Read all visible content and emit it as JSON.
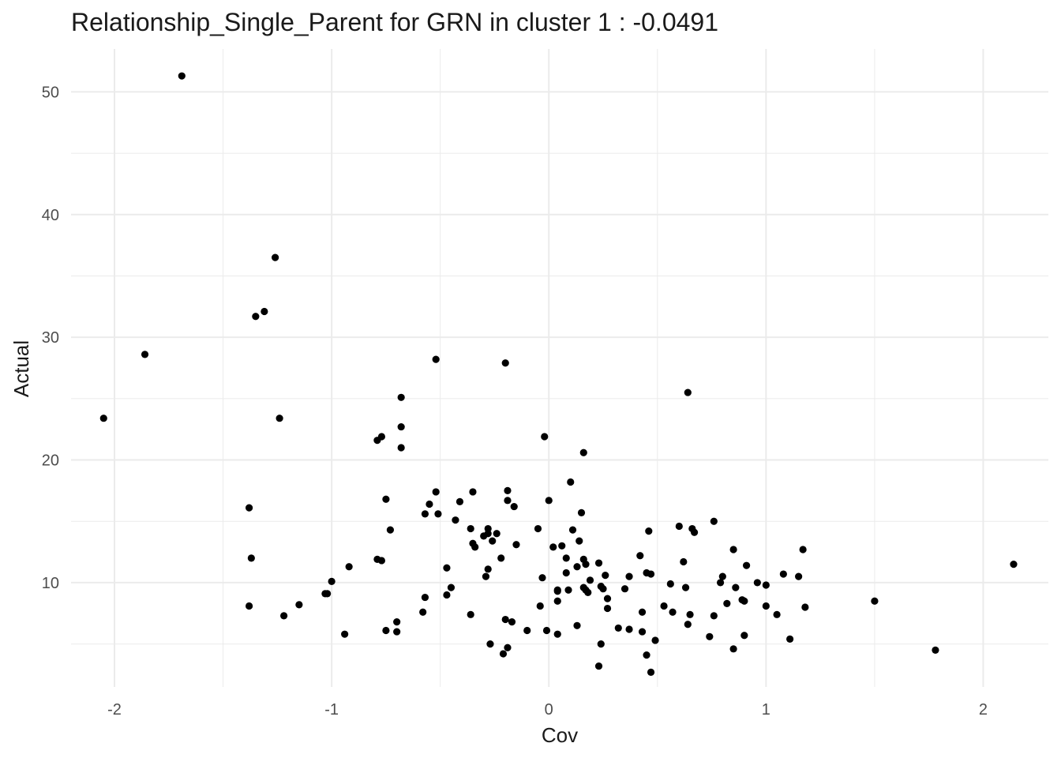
{
  "chart_data": {
    "type": "scatter",
    "title": "Relationship_Single_Parent for GRN in cluster 1 : -0.0491",
    "xlabel": "Cov",
    "ylabel": "Actual",
    "xlim": [
      -2.2,
      2.3
    ],
    "ylim": [
      1.5,
      53.5
    ],
    "x_ticks": [
      -2,
      -1,
      0,
      1,
      2
    ],
    "x_tick_labels": [
      "-2",
      "-1",
      "0",
      "1",
      "2"
    ],
    "x_minor_ticks": [
      -1.5,
      -0.5,
      0.5,
      1.5
    ],
    "y_ticks": [
      10,
      20,
      30,
      40,
      50
    ],
    "y_tick_labels": [
      "10",
      "20",
      "30",
      "40",
      "50"
    ],
    "y_minor_ticks": [
      5,
      15,
      25,
      35,
      45
    ],
    "grid": true,
    "point_color": "#000000",
    "grid_color": "#ebebeb",
    "points": [
      [
        -2.05,
        23.4
      ],
      [
        -1.86,
        28.6
      ],
      [
        -1.69,
        51.3
      ],
      [
        -1.26,
        36.5
      ],
      [
        -1.31,
        32.1
      ],
      [
        -1.35,
        31.7
      ],
      [
        -1.24,
        23.4
      ],
      [
        -1.38,
        16.1
      ],
      [
        -1.37,
        12.0
      ],
      [
        -1.38,
        8.1
      ],
      [
        -1.22,
        7.3
      ],
      [
        -1.15,
        8.2
      ],
      [
        -1.03,
        9.1
      ],
      [
        -1.02,
        9.1
      ],
      [
        -1.0,
        10.1
      ],
      [
        -0.94,
        5.8
      ],
      [
        -0.92,
        11.3
      ],
      [
        -0.79,
        21.6
      ],
      [
        -0.77,
        21.9
      ],
      [
        -0.79,
        11.9
      ],
      [
        -0.77,
        11.8
      ],
      [
        -0.75,
        16.8
      ],
      [
        -0.73,
        14.3
      ],
      [
        -0.75,
        6.1
      ],
      [
        -0.7,
        6.8
      ],
      [
        -0.7,
        6.0
      ],
      [
        -0.68,
        25.1
      ],
      [
        -0.68,
        22.7
      ],
      [
        -0.68,
        21.0
      ],
      [
        -0.52,
        28.2
      ],
      [
        -0.52,
        17.4
      ],
      [
        -0.55,
        16.4
      ],
      [
        -0.57,
        15.6
      ],
      [
        -0.51,
        15.6
      ],
      [
        -0.57,
        8.8
      ],
      [
        -0.58,
        7.6
      ],
      [
        -0.47,
        11.2
      ],
      [
        -0.45,
        9.6
      ],
      [
        -0.47,
        9.0
      ],
      [
        -0.43,
        15.1
      ],
      [
        -0.41,
        16.6
      ],
      [
        -0.35,
        17.4
      ],
      [
        -0.36,
        14.4
      ],
      [
        -0.35,
        13.2
      ],
      [
        -0.34,
        12.9
      ],
      [
        -0.36,
        7.4
      ],
      [
        -0.28,
        14.4
      ],
      [
        -0.28,
        14.0
      ],
      [
        -0.3,
        13.8
      ],
      [
        -0.24,
        14.0
      ],
      [
        -0.26,
        13.4
      ],
      [
        -0.22,
        12.0
      ],
      [
        -0.28,
        11.1
      ],
      [
        -0.29,
        10.5
      ],
      [
        -0.27,
        5.0
      ],
      [
        -0.21,
        4.2
      ],
      [
        -0.2,
        27.9
      ],
      [
        -0.19,
        17.5
      ],
      [
        -0.19,
        16.7
      ],
      [
        -0.16,
        16.2
      ],
      [
        -0.15,
        13.1
      ],
      [
        -0.2,
        7.0
      ],
      [
        -0.17,
        6.8
      ],
      [
        -0.19,
        4.7
      ],
      [
        -0.1,
        6.1
      ],
      [
        -0.05,
        14.4
      ],
      [
        -0.03,
        10.4
      ],
      [
        -0.04,
        8.1
      ],
      [
        -0.01,
        6.1
      ],
      [
        -0.02,
        21.9
      ],
      [
        0.0,
        16.7
      ],
      [
        0.02,
        12.9
      ],
      [
        0.04,
        9.4
      ],
      [
        0.04,
        9.3
      ],
      [
        0.04,
        8.5
      ],
      [
        0.04,
        5.8
      ],
      [
        0.06,
        13.0
      ],
      [
        0.08,
        12.0
      ],
      [
        0.08,
        10.8
      ],
      [
        0.09,
        9.4
      ],
      [
        0.1,
        18.2
      ],
      [
        0.11,
        14.3
      ],
      [
        0.14,
        13.4
      ],
      [
        0.13,
        11.3
      ],
      [
        0.13,
        6.5
      ],
      [
        0.16,
        20.6
      ],
      [
        0.15,
        15.7
      ],
      [
        0.16,
        11.9
      ],
      [
        0.17,
        11.5
      ],
      [
        0.16,
        9.6
      ],
      [
        0.17,
        9.4
      ],
      [
        0.18,
        9.2
      ],
      [
        0.19,
        10.2
      ],
      [
        0.23,
        11.6
      ],
      [
        0.24,
        9.7
      ],
      [
        0.25,
        9.5
      ],
      [
        0.26,
        10.6
      ],
      [
        0.27,
        8.7
      ],
      [
        0.27,
        7.9
      ],
      [
        0.24,
        5.0
      ],
      [
        0.23,
        3.2
      ],
      [
        0.32,
        6.3
      ],
      [
        0.35,
        9.5
      ],
      [
        0.37,
        10.5
      ],
      [
        0.37,
        6.2
      ],
      [
        0.42,
        12.2
      ],
      [
        0.43,
        7.6
      ],
      [
        0.43,
        6.0
      ],
      [
        0.45,
        10.8
      ],
      [
        0.47,
        10.7
      ],
      [
        0.46,
        14.2
      ],
      [
        0.45,
        4.1
      ],
      [
        0.47,
        2.7
      ],
      [
        0.49,
        5.3
      ],
      [
        0.53,
        8.1
      ],
      [
        0.56,
        9.9
      ],
      [
        0.57,
        7.6
      ],
      [
        0.6,
        14.6
      ],
      [
        0.62,
        11.7
      ],
      [
        0.63,
        9.6
      ],
      [
        0.64,
        25.5
      ],
      [
        0.65,
        7.4
      ],
      [
        0.64,
        6.6
      ],
      [
        0.66,
        14.4
      ],
      [
        0.67,
        14.1
      ],
      [
        0.74,
        5.6
      ],
      [
        0.76,
        15.0
      ],
      [
        0.76,
        7.3
      ],
      [
        0.79,
        10.0
      ],
      [
        0.8,
        10.5
      ],
      [
        0.82,
        8.3
      ],
      [
        0.85,
        12.7
      ],
      [
        0.86,
        9.6
      ],
      [
        0.85,
        4.6
      ],
      [
        0.89,
        8.6
      ],
      [
        0.9,
        8.5
      ],
      [
        0.9,
        5.7
      ],
      [
        0.91,
        11.4
      ],
      [
        0.96,
        10.0
      ],
      [
        1.0,
        9.8
      ],
      [
        1.0,
        8.1
      ],
      [
        1.05,
        7.4
      ],
      [
        1.08,
        10.7
      ],
      [
        1.11,
        5.4
      ],
      [
        1.15,
        10.5
      ],
      [
        1.17,
        12.7
      ],
      [
        1.18,
        8.0
      ],
      [
        1.5,
        8.5
      ],
      [
        1.78,
        4.5
      ],
      [
        2.14,
        11.5
      ]
    ]
  }
}
